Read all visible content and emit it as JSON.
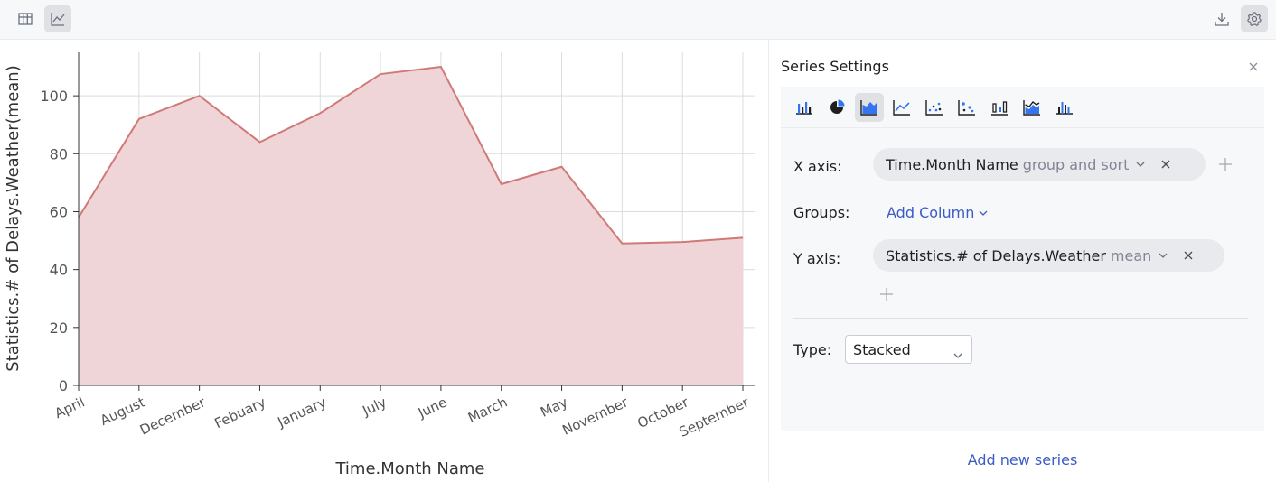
{
  "toolbar": {
    "left_buttons": [
      {
        "name": "table-view-button",
        "icon": "table-icon",
        "active": false
      },
      {
        "name": "chart-view-button",
        "icon": "line-chart-icon",
        "active": true
      }
    ],
    "right_buttons": [
      {
        "name": "download-button",
        "icon": "download-icon",
        "active": false
      },
      {
        "name": "settings-button",
        "icon": "gear-icon",
        "active": true
      }
    ]
  },
  "chart_data": {
    "type": "area",
    "categories": [
      "April",
      "August",
      "December",
      "Febuary",
      "January",
      "July",
      "June",
      "March",
      "May",
      "November",
      "October",
      "September"
    ],
    "values": [
      58,
      92,
      100,
      84,
      94,
      107.5,
      110,
      69.5,
      75.5,
      49,
      49.5,
      51
    ],
    "xlabel": "Time.Month Name",
    "ylabel": "Statistics.# of Delays.Weather(mean)",
    "ylim": [
      0,
      115
    ],
    "yticks": [
      0,
      20,
      40,
      60,
      80,
      100
    ],
    "grid": true,
    "colors": {
      "line": "#d07a78",
      "fill": "#efd5d7",
      "grid": "#dcdcdc",
      "axis": "#333333"
    }
  },
  "panel": {
    "title": "Series Settings",
    "chart_types": [
      {
        "name": "bar",
        "icon": "bar-chart-icon",
        "active": false
      },
      {
        "name": "pie",
        "icon": "pie-chart-icon",
        "active": false
      },
      {
        "name": "area",
        "icon": "area-chart-icon",
        "active": true
      },
      {
        "name": "line",
        "icon": "line-chart-icon",
        "active": false
      },
      {
        "name": "scatter",
        "icon": "scatter-chart-icon",
        "active": false
      },
      {
        "name": "bubble",
        "icon": "bubble-chart-icon",
        "active": false
      },
      {
        "name": "stock",
        "icon": "stock-chart-icon",
        "active": false
      },
      {
        "name": "stacked-area",
        "icon": "stacked-area-chart-icon",
        "active": false
      },
      {
        "name": "histogram",
        "icon": "histogram-chart-icon",
        "active": false
      }
    ],
    "x_axis": {
      "label": "X axis:",
      "column": "Time.Month Name",
      "mode": "group and sort"
    },
    "groups": {
      "label": "Groups:",
      "action": "Add Column"
    },
    "y_axis": {
      "label": "Y axis:",
      "column": "Statistics.# of Delays.Weather",
      "mode": "mean"
    },
    "type": {
      "label": "Type:",
      "value": "Stacked"
    },
    "add_series": "Add new series"
  }
}
